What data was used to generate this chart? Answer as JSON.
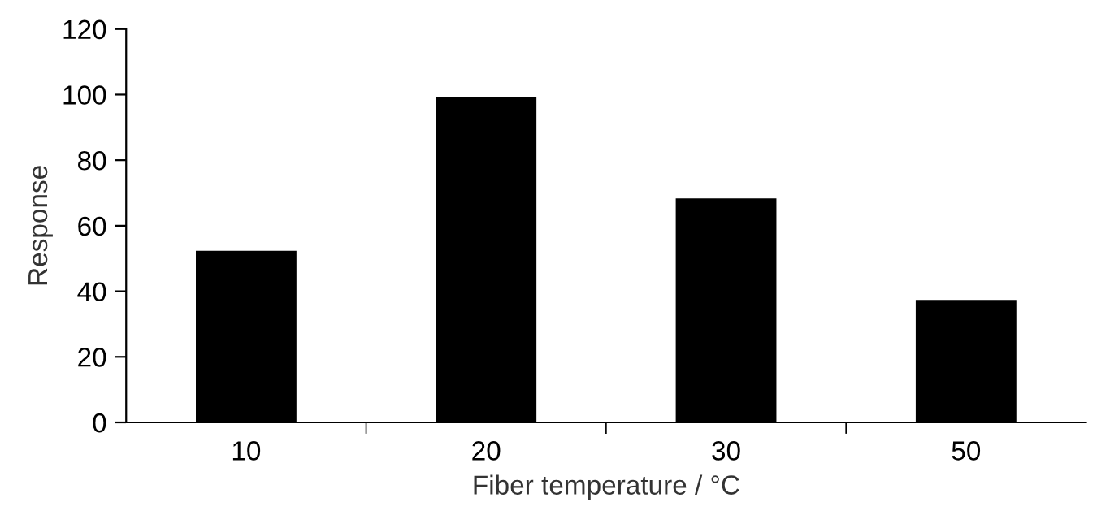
{
  "chart_data": {
    "type": "bar",
    "xlabel": "Fiber temperature / °C",
    "ylabel": "Response",
    "categories": [
      "10",
      "20",
      "30",
      "50"
    ],
    "values": [
      52,
      99,
      68,
      37
    ],
    "color": "#000000",
    "ylim": [
      0,
      120
    ],
    "yticks": [
      0,
      20,
      40,
      60,
      80,
      100,
      120
    ],
    "grid": false,
    "legend": false
  }
}
